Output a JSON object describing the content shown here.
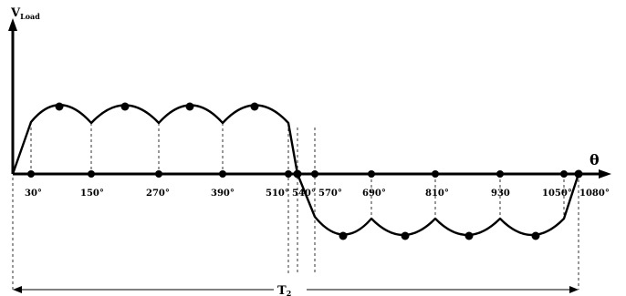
{
  "diagram": {
    "y_axis_label_main": "V",
    "y_axis_label_sub": "Load",
    "x_axis_label": "θ",
    "period_label": "T",
    "period_label_sub": "2",
    "tick_labels": [
      "30°",
      "150°",
      "270°",
      "390°",
      "510°",
      "540°",
      "570°",
      "690°",
      "810°",
      "930",
      "1050°",
      "1080°"
    ],
    "colors": {
      "stroke": "#000000",
      "background": "#ffffff"
    }
  }
}
